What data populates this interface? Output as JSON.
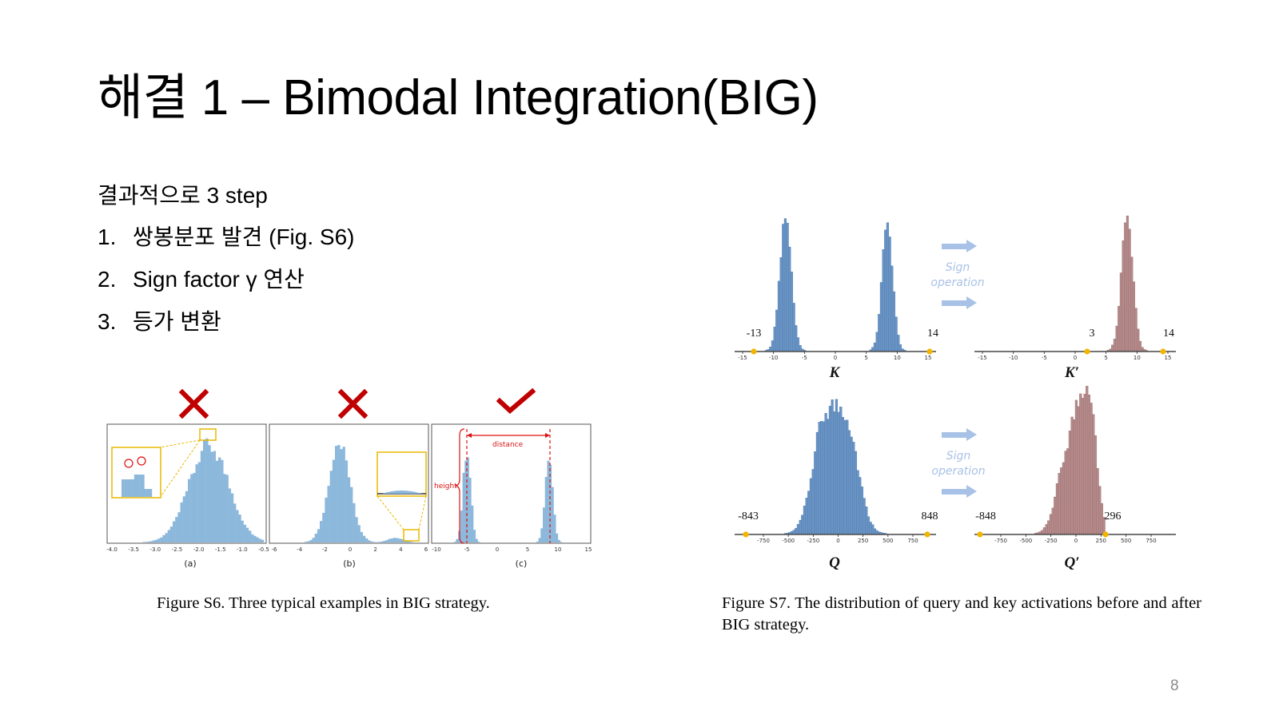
{
  "slide": {
    "title": "해결 1 – Bimodal Integration(BIG)",
    "intro": "결과적으로 3 step",
    "steps": [
      {
        "num": "1.",
        "text": "쌍봉분포 발견 (Fig. S6)"
      },
      {
        "num": "2.",
        "text": "Sign factor γ 연산"
      },
      {
        "num": "3.",
        "text": "등가 변환"
      }
    ],
    "page_number": "8"
  },
  "figure_s6": {
    "caption": "Figure S6. Three typical examples in BIG strategy.",
    "marks": [
      "cross-icon",
      "cross-icon",
      "check-icon"
    ],
    "mark_colors": {
      "bad": "#c00000",
      "good": "#c00000"
    },
    "hist_color": "#8cb8dc",
    "panels": [
      {
        "label": "(a)",
        "ticks": [
          "-4.0",
          "-3.5",
          "-3.0",
          "-2.5",
          "-2.0",
          "-1.5",
          "-1.0",
          "-0.5"
        ]
      },
      {
        "label": "(b)",
        "ticks": [
          "-6",
          "-4",
          "-2",
          "0",
          "2",
          "4",
          "6"
        ]
      },
      {
        "label": "(c)",
        "ticks": [
          "-10",
          "-5",
          "0",
          "5",
          "10",
          "15"
        ],
        "annotations": {
          "distance": "distance",
          "height": "height"
        }
      }
    ]
  },
  "figure_s7": {
    "caption": "Figure S7.  The distribution of query and key activations before and after BIG strategy.",
    "sign_operation": [
      "Sign",
      "operation"
    ],
    "key_color": "#6a94c4",
    "shifted_color": "#b58a8a",
    "marker_color": "#f2b600",
    "arrow_color": "#a8c1e6",
    "panels": [
      {
        "name": "K",
        "min_label": "-13",
        "max_label": "14",
        "ticks": [
          "-15",
          "-10",
          "-5",
          "0",
          "5",
          "10",
          "15"
        ]
      },
      {
        "name": "K′",
        "min_label": "3",
        "max_label": "14",
        "ticks": [
          "-15",
          "-10",
          "-5",
          "0",
          "5",
          "10",
          "15"
        ]
      },
      {
        "name": "Q",
        "min_label": "-843",
        "max_label": "848",
        "ticks": [
          "-750",
          "-500",
          "-250",
          "0",
          "250",
          "500",
          "750"
        ]
      },
      {
        "name": "Q′",
        "min_label": "-848",
        "max_label": "296",
        "ticks": [
          "-750",
          "-500",
          "-250",
          "0",
          "250",
          "500",
          "750"
        ]
      }
    ]
  }
}
